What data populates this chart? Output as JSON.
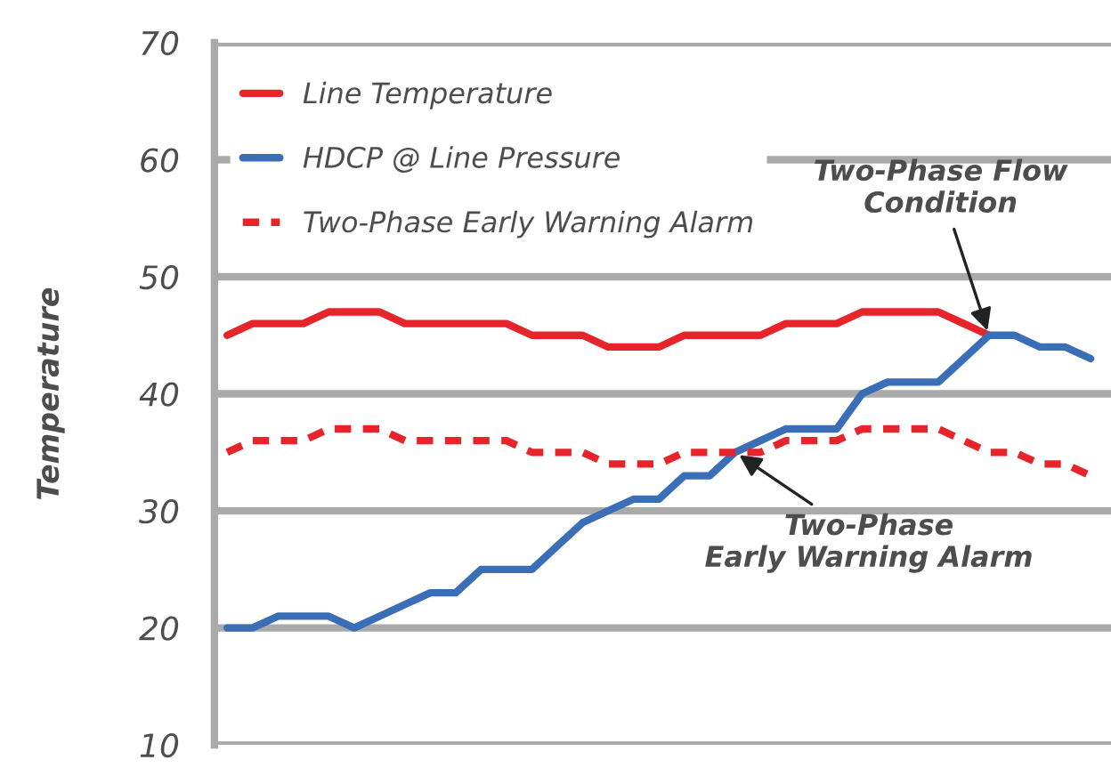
{
  "chart_data": {
    "type": "line",
    "ylabel": "Temperature",
    "categories": [
      null,
      null,
      null,
      null,
      null,
      null,
      null,
      null,
      null,
      null,
      null,
      null,
      null,
      null,
      null,
      null,
      null,
      null,
      null,
      null,
      null,
      null,
      null,
      null,
      null,
      null,
      null,
      null,
      null,
      null,
      null,
      null,
      null,
      null,
      null
    ],
    "series": [
      {
        "name": "Line Temperature",
        "color": "#e8242b",
        "line_style": "solid",
        "values": [
          45,
          46,
          46,
          46,
          47,
          47,
          47,
          46,
          46,
          46,
          46,
          46,
          45,
          45,
          45,
          44,
          44,
          44,
          45,
          45,
          45,
          45,
          46,
          46,
          46,
          47,
          47,
          47,
          47,
          46,
          45,
          null,
          null,
          null,
          null
        ]
      },
      {
        "name": "HDCP @ Line Pressure",
        "color": "#3a6fb7",
        "line_style": "solid",
        "values": [
          20,
          20,
          21,
          21,
          21,
          20,
          21,
          22,
          23,
          23,
          25,
          25,
          25,
          27,
          29,
          30,
          31,
          31,
          33,
          33,
          35,
          36,
          37,
          37,
          37,
          40,
          41,
          41,
          41,
          43,
          45,
          45,
          44,
          44,
          43
        ]
      },
      {
        "name": "Two-Phase Early Warning Alarm",
        "color": "#e8242b",
        "line_style": "dashed",
        "values": [
          35,
          36,
          36,
          36,
          37,
          37,
          37,
          36,
          36,
          36,
          36,
          36,
          35,
          35,
          35,
          34,
          34,
          34,
          35,
          35,
          35,
          35,
          36,
          36,
          36,
          37,
          37,
          37,
          37,
          36,
          35,
          35,
          34,
          34,
          33
        ]
      }
    ],
    "ylim": [
      10,
      70
    ],
    "yticks": [
      10,
      20,
      30,
      40,
      50,
      60,
      70
    ],
    "grid": "y",
    "legend": "top left",
    "annotations": [
      "Two-Phase Flow\nCondition",
      "Two-Phase\nEarly Warning Alarm"
    ]
  }
}
